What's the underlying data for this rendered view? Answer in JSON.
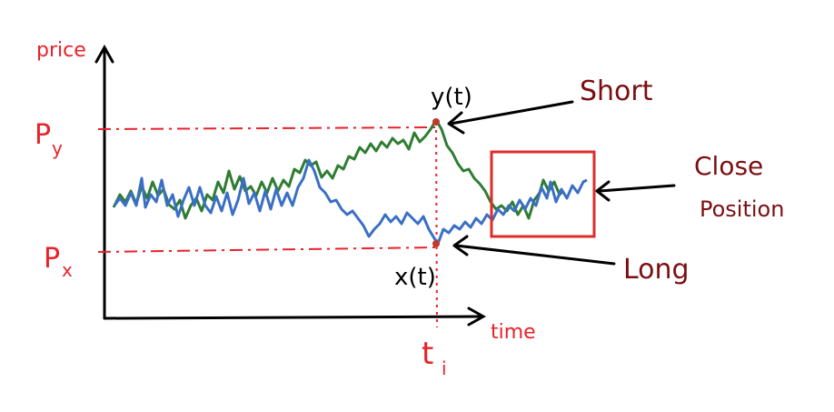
{
  "diagram": {
    "axis_y_label": "price",
    "axis_x_label": "time",
    "level_high_label": "P",
    "level_high_sub": "y",
    "level_low_label": "P",
    "level_low_sub": "x",
    "time_marker_label": "t",
    "time_marker_sub": "i",
    "point_y_label": "y(t)",
    "point_x_label": "x(t)",
    "short_label": "Short",
    "long_label": "Long",
    "close_label_line1": "Close",
    "close_label_line2": "Position"
  },
  "colors": {
    "axis": "#000000",
    "axis_text": "#e8222a",
    "guide": "#e8222a",
    "series_y": "#2e7d32",
    "series_x": "#3a6fc4",
    "annotation": "#7a0f12",
    "box": "#e02b2b"
  }
}
